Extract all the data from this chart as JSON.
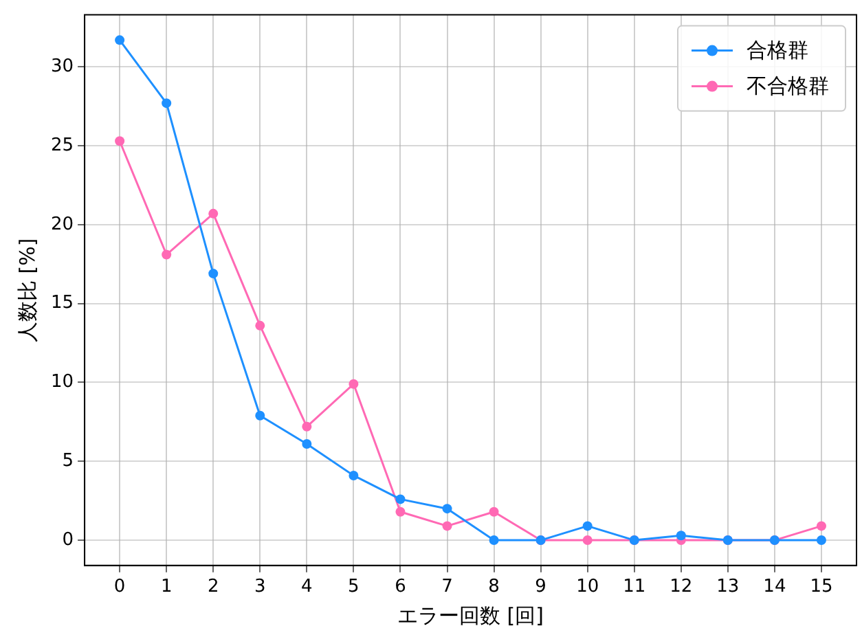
{
  "chart_data": {
    "type": "line",
    "xlabel": "エラー回数 [回]",
    "ylabel": "人数比 [%]",
    "x": [
      0,
      1,
      2,
      3,
      4,
      5,
      6,
      7,
      8,
      9,
      10,
      11,
      12,
      13,
      14,
      15
    ],
    "series": [
      {
        "name": "合格群",
        "color": "#1e90ff",
        "values": [
          31.7,
          27.7,
          16.9,
          7.9,
          6.1,
          4.1,
          2.6,
          2.0,
          0,
          0,
          0.9,
          0,
          0.3,
          0,
          0,
          0
        ]
      },
      {
        "name": "不合格群",
        "color": "#ff69b4",
        "values": [
          25.3,
          18.1,
          20.7,
          13.6,
          7.2,
          9.9,
          1.8,
          0.9,
          1.8,
          0,
          0,
          0,
          0,
          0,
          0,
          0.9
        ]
      }
    ],
    "xlim": [
      -0.75,
      15.75
    ],
    "ylim": [
      -1.6,
      33.3
    ],
    "xticks": [
      0,
      1,
      2,
      3,
      4,
      5,
      6,
      7,
      8,
      9,
      10,
      11,
      12,
      13,
      14,
      15
    ],
    "yticks": [
      0,
      5,
      10,
      15,
      20,
      25,
      30
    ],
    "grid": true,
    "legend": "top right",
    "marker": "circle",
    "line_style": "solid"
  }
}
